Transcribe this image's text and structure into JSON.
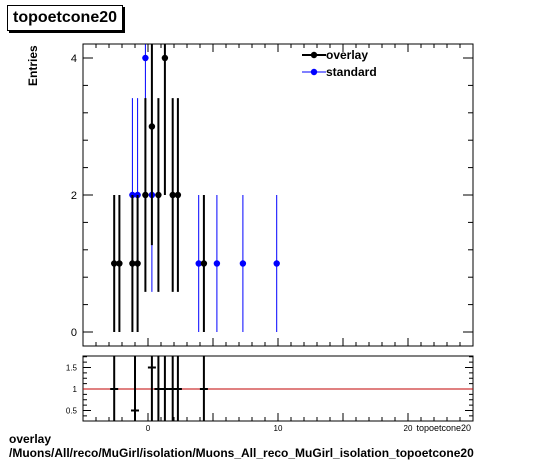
{
  "histogram_title": "topoetcone20",
  "footer": {
    "line1": "overlay",
    "line2": "/Muons/All/reco/MuGirl/isolation/Muons_All_reco_MuGirl_isolation_topoetcone20"
  },
  "chart_data": [
    {
      "type": "scatter",
      "title": "topoetcone20",
      "ylabel": "Entries",
      "xlabel": "topoetcone20",
      "xlim": [
        -5,
        25
      ],
      "ylim": [
        0,
        4.2
      ],
      "y_ticks": [
        0,
        2,
        4
      ],
      "legend_position": "top-right",
      "grid": false,
      "series": [
        {
          "name": "overlay",
          "color": "#000000",
          "points": [
            {
              "x": -2.6,
              "y": 1
            },
            {
              "x": -2.2,
              "y": 1
            },
            {
              "x": -1.2,
              "y": 1
            },
            {
              "x": -0.8,
              "y": 1
            },
            {
              "x": -0.2,
              "y": 2
            },
            {
              "x": 0.3,
              "y": 3
            },
            {
              "x": 0.8,
              "y": 2
            },
            {
              "x": 1.3,
              "y": 4
            },
            {
              "x": 1.9,
              "y": 2
            },
            {
              "x": 2.3,
              "y": 2
            },
            {
              "x": 4.3,
              "y": 1
            }
          ]
        },
        {
          "name": "standard",
          "color": "#0000ff",
          "points": [
            {
              "x": -1.2,
              "y": 2
            },
            {
              "x": -0.8,
              "y": 2
            },
            {
              "x": -0.2,
              "y": 4
            },
            {
              "x": 0.3,
              "y": 2
            },
            {
              "x": 3.9,
              "y": 1
            },
            {
              "x": 5.3,
              "y": 1
            },
            {
              "x": 7.3,
              "y": 1
            },
            {
              "x": 9.9,
              "y": 1
            }
          ]
        }
      ]
    },
    {
      "type": "scatter",
      "title": "",
      "ylabel": "",
      "xlabel": "",
      "xlim": [
        -5,
        25
      ],
      "ylim": [
        0.25,
        1.75
      ],
      "y_ticks": [
        0.5,
        1,
        1.5
      ],
      "x_ticks": [
        0,
        10,
        20
      ],
      "reference_line": {
        "y": 1,
        "color": "#c00000"
      },
      "series": [
        {
          "name": "",
          "color": "#000000",
          "points": [
            {
              "x": -2.6,
              "y": 1
            },
            {
              "x": -1.0,
              "y": 0.5
            },
            {
              "x": 0.3,
              "y": 1.5
            },
            {
              "x": 0.8,
              "y": 1
            },
            {
              "x": 1.3,
              "y": 1
            },
            {
              "x": 1.9,
              "y": 1
            },
            {
              "x": 2.3,
              "y": 1
            },
            {
              "x": 4.3,
              "y": 1
            }
          ]
        }
      ]
    }
  ]
}
